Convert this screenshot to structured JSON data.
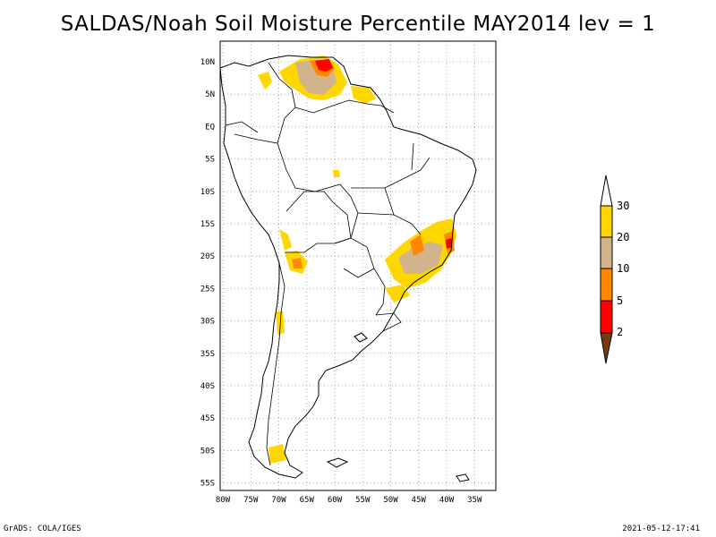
{
  "title": "SALDAS/Noah Soil Moisture Percentile MAY2014 lev = 1",
  "axes": {
    "lon_labels": [
      "80W",
      "75W",
      "70W",
      "65W",
      "60W",
      "55W",
      "50W",
      "45W",
      "40W",
      "35W"
    ],
    "lat_labels": [
      "10N",
      "5N",
      "EQ",
      "5S",
      "10S",
      "15S",
      "20S",
      "25S",
      "30S",
      "35S",
      "40S",
      "45S",
      "50S",
      "55S"
    ],
    "lon_range": [
      -80,
      -35
    ],
    "lat_range": [
      -55,
      10
    ]
  },
  "colorbar": {
    "levels": [
      "2",
      "5",
      "10",
      "20",
      "30"
    ],
    "colors": {
      "below_2": "#7a3b0c",
      "2_5": "#ff0000",
      "5_10": "#ff8800",
      "10_20": "#d2b48c",
      "20_30": "#ffd700",
      "above_30": "#ffffff"
    }
  },
  "footer": {
    "left": "GrADS: COLA/IGES",
    "right": "2021-05-12-17:41"
  }
}
